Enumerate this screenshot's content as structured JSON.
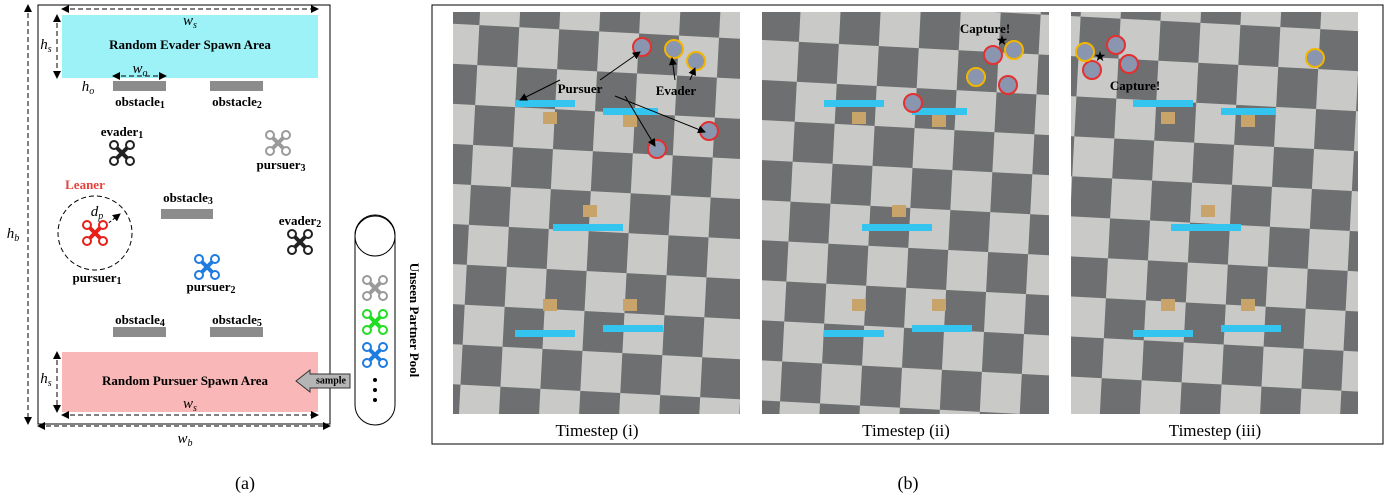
{
  "panel_a": {
    "evader_spawn": "Random Evader Spawn Area",
    "pursuer_spawn": "Random Pursuer Spawn Area",
    "w_s_top": {
      "base": "w",
      "sub": "s"
    },
    "h_s_top": {
      "base": "h",
      "sub": "s"
    },
    "w_o": {
      "base": "w",
      "sub": "o"
    },
    "h_o": {
      "base": "h",
      "sub": "o"
    },
    "h_b": {
      "base": "h",
      "sub": "b"
    },
    "w_b": {
      "base": "w",
      "sub": "b"
    },
    "w_s_bottom": {
      "base": "w",
      "sub": "s"
    },
    "h_s_bottom": {
      "base": "h",
      "sub": "s"
    },
    "d_p": {
      "base": "d",
      "sub": "p"
    },
    "obstacles": [
      {
        "base": "obstacle",
        "sub": "1"
      },
      {
        "base": "obstacle",
        "sub": "2"
      },
      {
        "base": "obstacle",
        "sub": "3"
      },
      {
        "base": "obstacle",
        "sub": "4"
      },
      {
        "base": "obstacle",
        "sub": "5"
      }
    ],
    "evaders": [
      {
        "base": "evader",
        "sub": "1"
      },
      {
        "base": "evader",
        "sub": "2"
      }
    ],
    "pursuers": [
      {
        "base": "pursuer",
        "sub": "1"
      },
      {
        "base": "pursuer",
        "sub": "2"
      },
      {
        "base": "pursuer",
        "sub": "3"
      }
    ],
    "learner": "Leaner",
    "sample": "sample",
    "pool": "Unseen Partner Pool",
    "caption": "(a)"
  },
  "panel_b": {
    "timesteps": [
      "Timestep (i)",
      "Timestep (ii)",
      "Timestep (iii)"
    ],
    "pursuer_label": "Pursuer",
    "evader_label": "Evader",
    "capture_ii": "Capture!",
    "capture_iii": "Capture!",
    "caption": "(b)"
  }
}
